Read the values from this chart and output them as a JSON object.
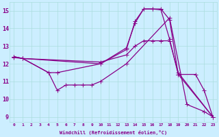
{
  "xlabel": "Windchill (Refroidissement éolien,°C)",
  "background_color": "#cceeff",
  "line_color": "#880088",
  "x_ticks": [
    0,
    1,
    2,
    3,
    4,
    5,
    6,
    7,
    8,
    9,
    10,
    11,
    12,
    13,
    14,
    15,
    16,
    17,
    18,
    19,
    20,
    21,
    22,
    23
  ],
  "y_ticks": [
    9,
    10,
    11,
    12,
    13,
    14,
    15
  ],
  "ylim": [
    8.7,
    15.5
  ],
  "xlim": [
    -0.5,
    23.5
  ],
  "line1_x": [
    0,
    1,
    4,
    5,
    6,
    7,
    8,
    9,
    10,
    13,
    18,
    20,
    22,
    23
  ],
  "line1_y": [
    12.4,
    12.3,
    11.5,
    10.5,
    10.8,
    10.8,
    10.8,
    10.8,
    11.0,
    12.0,
    14.6,
    9.7,
    9.3,
    9.0
  ],
  "line2_x": [
    0,
    1,
    4,
    5,
    10,
    13,
    14,
    15,
    16,
    17,
    18,
    19,
    21,
    22,
    23
  ],
  "line2_y": [
    12.4,
    12.3,
    11.5,
    11.5,
    12.0,
    12.9,
    14.3,
    15.1,
    15.1,
    15.1,
    14.5,
    11.4,
    11.4,
    10.5,
    9.0
  ],
  "line3_x": [
    0,
    1,
    10,
    13,
    14,
    15,
    16,
    17,
    18,
    19,
    23
  ],
  "line3_y": [
    12.4,
    12.3,
    12.0,
    12.8,
    14.4,
    15.1,
    15.1,
    15.05,
    13.4,
    11.4,
    9.0
  ],
  "line4_x": [
    0,
    1,
    10,
    13,
    14,
    15,
    16,
    17,
    18,
    19,
    23
  ],
  "line4_y": [
    12.35,
    12.3,
    12.1,
    12.5,
    13.0,
    13.3,
    13.3,
    13.3,
    13.3,
    11.5,
    9.0
  ]
}
